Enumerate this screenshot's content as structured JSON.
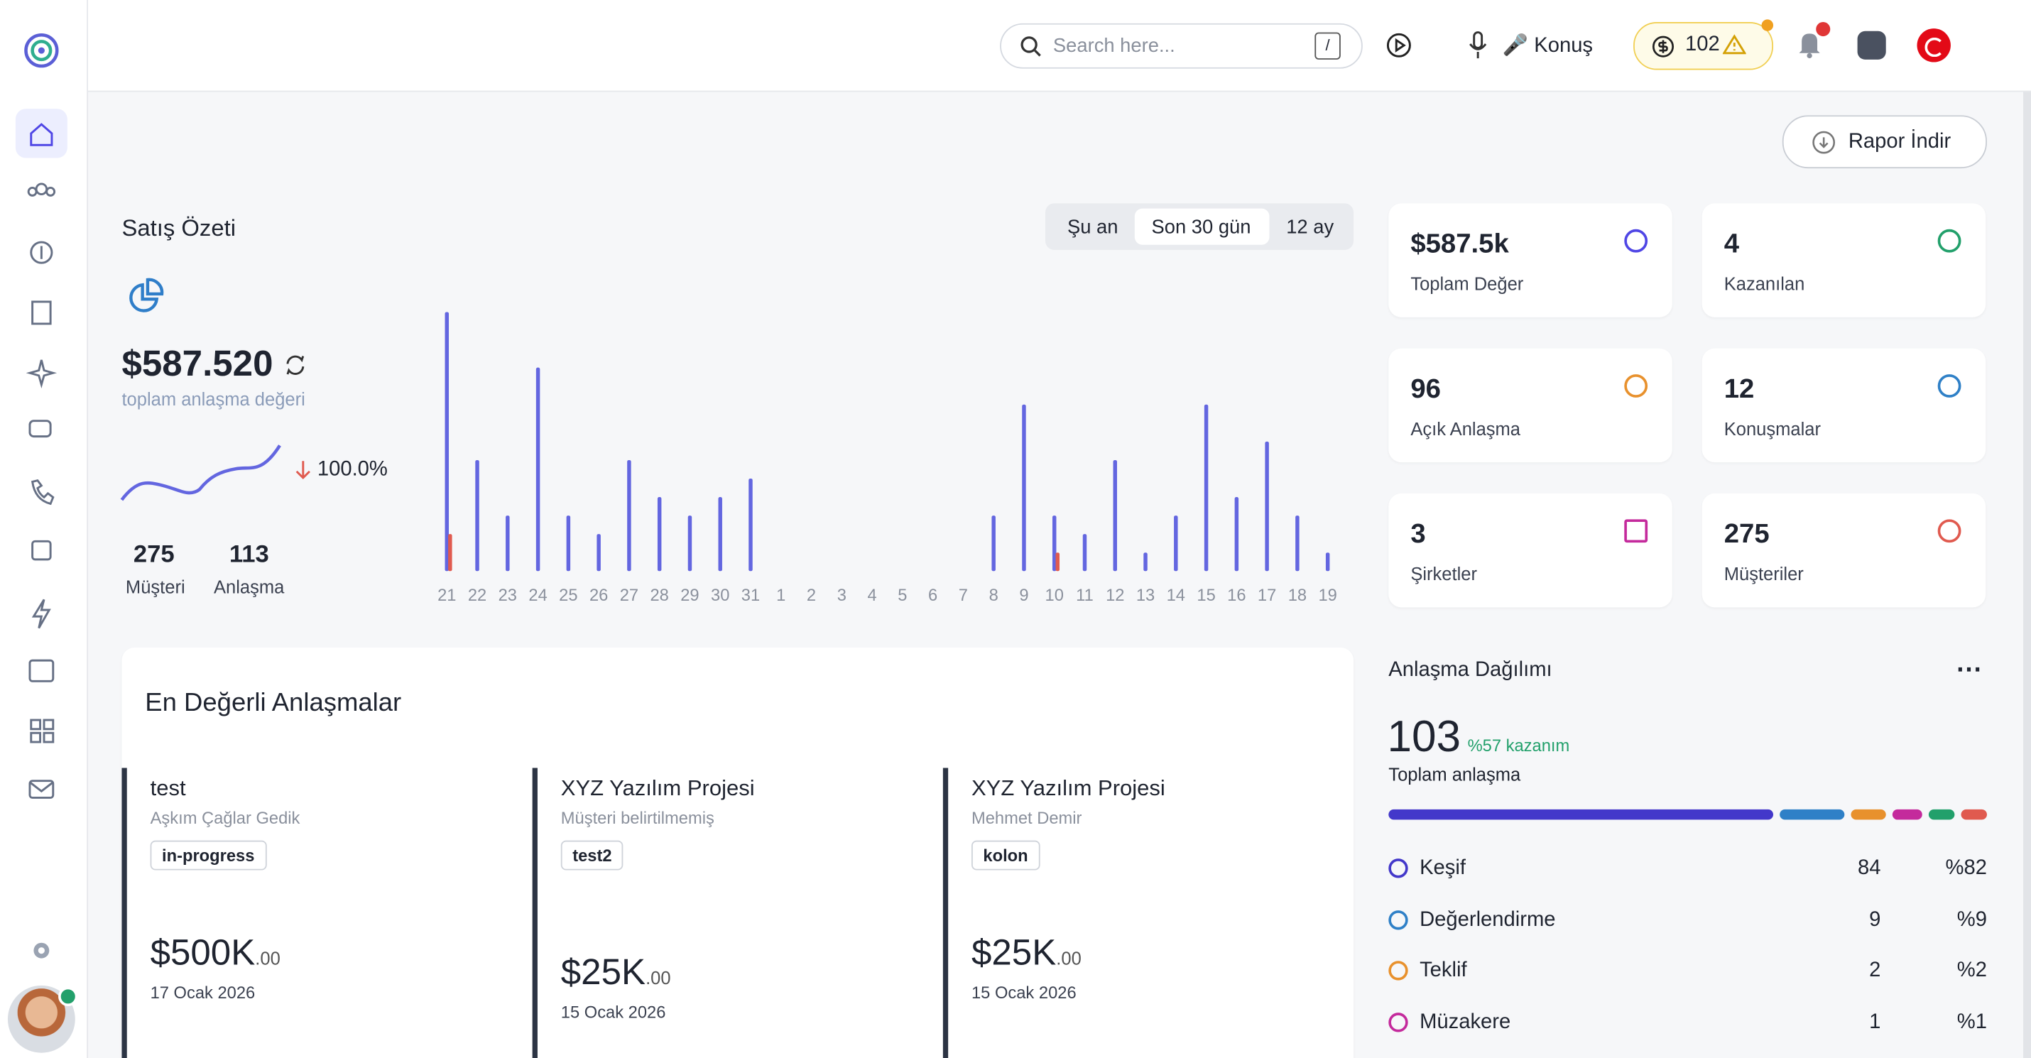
{
  "topbar": {
    "search_placeholder": "Search here...",
    "search_key": "/",
    "voice": "🎤 Konuş",
    "credits": "102"
  },
  "actions": {
    "report": "Rapor İndir"
  },
  "sales": {
    "title": "Satış Özeti",
    "periods": [
      "Şu an",
      "Son 30 gün",
      "12 ay"
    ],
    "total": "$587.520",
    "total_caption": "toplam anlaşma değeri",
    "change": "100.0%",
    "customers": "275",
    "customers_label": "Müşteri",
    "deals": "113",
    "deals_label": "Anlaşma"
  },
  "chart_data": {
    "type": "bar",
    "categories": [
      "21",
      "22",
      "23",
      "24",
      "25",
      "26",
      "27",
      "28",
      "29",
      "30",
      "31",
      "1",
      "2",
      "3",
      "4",
      "5",
      "6",
      "7",
      "8",
      "9",
      "10",
      "11",
      "12",
      "13",
      "14",
      "15",
      "16",
      "17",
      "18",
      "19"
    ],
    "series": [
      {
        "color": "#6366e0",
        "values": [
          14,
          6,
          3,
          11,
          3,
          2,
          6,
          4,
          3,
          4,
          5,
          0,
          0,
          0,
          0,
          0,
          0,
          0,
          3,
          9,
          3,
          2,
          6,
          1,
          3,
          9,
          4,
          7,
          3,
          1
        ]
      },
      {
        "color": "#e05a4f",
        "values": [
          2,
          0,
          0,
          0,
          0,
          0,
          0,
          0,
          0,
          0,
          0,
          0,
          0,
          0,
          0,
          0,
          0,
          0,
          0,
          0,
          1,
          0,
          0,
          0,
          0,
          0,
          0,
          0,
          0,
          0
        ]
      }
    ]
  },
  "stats": [
    {
      "value": "$587.5k",
      "label": "Toplam Değer"
    },
    {
      "value": "4",
      "label": "Kazanılan"
    },
    {
      "value": "96",
      "label": "Açık Anlaşma"
    },
    {
      "value": "12",
      "label": "Konuşmalar"
    },
    {
      "value": "3",
      "label": "Şirketler"
    },
    {
      "value": "275",
      "label": "Müşteriler"
    }
  ],
  "top_deals": {
    "title": "En Değerli Anlaşmalar",
    "items": [
      {
        "name": "test",
        "contact": "Aşkım Çağlar Gedik",
        "tag": "in-progress",
        "amount": "$500K",
        "cents": ".00",
        "date": "17 Ocak 2026"
      },
      {
        "name": "XYZ Yazılım Projesi",
        "contact": "Müşteri belirtilmemiş",
        "tag": "test2",
        "amount": "$25K",
        "cents": ".00",
        "date": "15 Ocak 2026"
      },
      {
        "name": "XYZ Yazılım Projesi",
        "contact": "Mehmet Demir",
        "tag": "kolon",
        "amount": "$25K",
        "cents": ".00",
        "date": "15 Ocak 2026"
      }
    ]
  },
  "distribution": {
    "title": "Anlaşma Dağılımı",
    "total": "103",
    "won": "%57 kazanım",
    "total_label": "Toplam anlaşma",
    "items": [
      {
        "name": "Keşif",
        "count": 84,
        "pct": "%82",
        "color": "#4338ca"
      },
      {
        "name": "Değerlendirme",
        "count": 9,
        "pct": "%9",
        "color": "#2f80c7"
      },
      {
        "name": "Teklif",
        "count": 2,
        "pct": "%2",
        "color": "#e8912d"
      },
      {
        "name": "Müzakere",
        "count": 1,
        "pct": "%1",
        "color": "#c42a9c"
      }
    ]
  }
}
